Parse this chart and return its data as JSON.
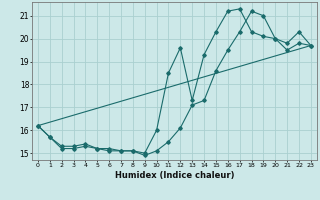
{
  "xlabel": "Humidex (Indice chaleur)",
  "bg_color": "#cce8e8",
  "grid_color": "#aad0d0",
  "line_color": "#1a6b6b",
  "xlim": [
    -0.5,
    23.5
  ],
  "ylim": [
    14.7,
    21.6
  ],
  "yticks": [
    15,
    16,
    17,
    18,
    19,
    20,
    21
  ],
  "xtick_labels": [
    "0",
    "1",
    "2",
    "3",
    "4",
    "5",
    "6",
    "7",
    "8",
    "9",
    "10",
    "11",
    "12",
    "13",
    "14",
    "15",
    "16",
    "17",
    "18",
    "19",
    "20",
    "21",
    "22",
    "23"
  ],
  "line1_x": [
    0,
    1,
    2,
    3,
    4,
    5,
    6,
    7,
    8,
    9,
    10,
    11,
    12,
    13,
    14,
    15,
    16,
    17,
    18,
    19,
    20,
    21,
    22,
    23
  ],
  "line1_y": [
    16.2,
    15.7,
    15.2,
    15.2,
    15.3,
    15.2,
    15.1,
    15.1,
    15.1,
    15.0,
    16.0,
    18.5,
    19.6,
    17.3,
    19.3,
    20.3,
    21.2,
    21.3,
    20.3,
    20.1,
    20.0,
    19.8,
    20.3,
    19.7
  ],
  "line2_x": [
    0,
    1,
    2,
    3,
    4,
    5,
    6,
    7,
    8,
    9,
    10,
    11,
    12,
    13,
    14,
    15,
    16,
    17,
    18,
    19,
    20,
    21,
    22,
    23
  ],
  "line2_y": [
    16.2,
    15.7,
    15.3,
    15.3,
    15.4,
    15.2,
    15.2,
    15.1,
    15.1,
    14.9,
    15.1,
    15.5,
    16.1,
    17.1,
    17.3,
    18.6,
    19.5,
    20.3,
    21.2,
    21.0,
    20.0,
    19.5,
    19.8,
    19.7
  ],
  "line3_x": [
    0,
    23
  ],
  "line3_y": [
    16.2,
    19.7
  ]
}
